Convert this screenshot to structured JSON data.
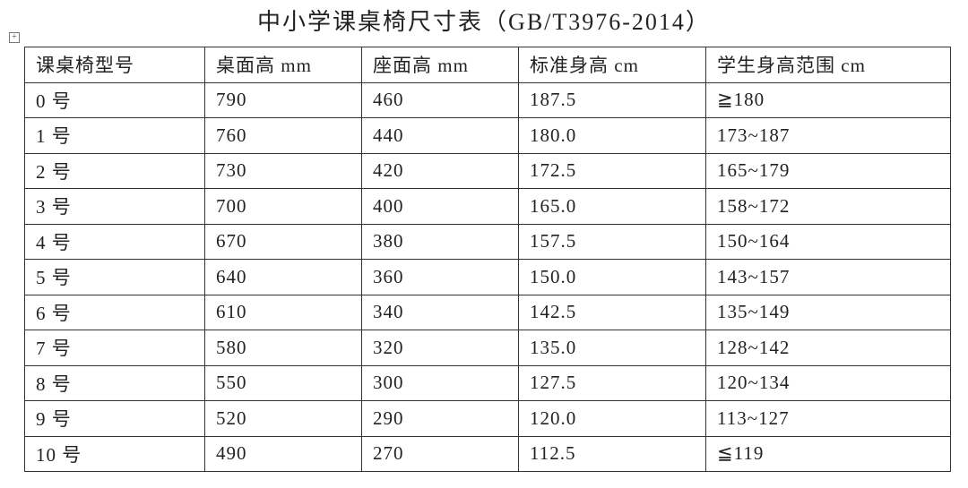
{
  "title": "中小学课桌椅尺寸表（GB/T3976-2014）",
  "table": {
    "header": [
      "课桌椅型号",
      "桌面高 mm",
      "座面高 mm",
      "标准身高 cm",
      "学生身高范围 cm"
    ],
    "rows": [
      [
        "0 号",
        "790",
        "460",
        "187.5",
        "≧180"
      ],
      [
        "1 号",
        "760",
        "440",
        "180.0",
        "173~187"
      ],
      [
        "2 号",
        "730",
        "420",
        "172.5",
        "165~179"
      ],
      [
        "3 号",
        "700",
        "400",
        "165.0",
        "158~172"
      ],
      [
        "4 号",
        "670",
        "380",
        "157.5",
        "150~164"
      ],
      [
        "5 号",
        "640",
        "360",
        "150.0",
        "143~157"
      ],
      [
        "6 号",
        "610",
        "340",
        "142.5",
        "135~149"
      ],
      [
        "7 号",
        "580",
        "320",
        "135.0",
        "128~142"
      ],
      [
        "8 号",
        "550",
        "300",
        "127.5",
        "120~134"
      ],
      [
        "9 号",
        "520",
        "290",
        "120.0",
        "113~127"
      ],
      [
        "10 号",
        "490",
        "270",
        "112.5",
        "≦119"
      ]
    ]
  }
}
